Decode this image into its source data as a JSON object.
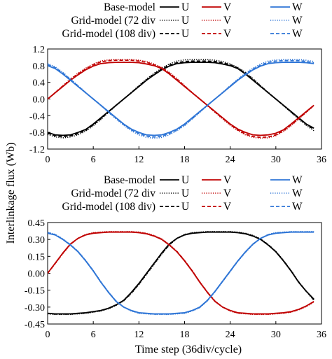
{
  "figure": {
    "ylabel": "Interlinkage flux (Wb)",
    "xlabel": "Time step (36div/cycle)"
  },
  "legend": {
    "rows": [
      {
        "label": "Base-model",
        "style": "solid"
      },
      {
        "label": "Grid-model (72 div",
        "style": "dotted"
      },
      {
        "label": "Grid-model (108 div)",
        "style": "dashed"
      }
    ],
    "phases": [
      {
        "name": "U",
        "color": "#000000"
      },
      {
        "name": "V",
        "color": "#c00000"
      },
      {
        "name": "W",
        "color": "#2e75d6"
      }
    ]
  },
  "chart_data": [
    {
      "type": "line",
      "title": "",
      "xlabel": "",
      "ylabel": "Interlinkage flux (Wb)",
      "xlim": [
        0,
        36
      ],
      "ylim": [
        -1.2,
        1.2
      ],
      "xticks": [
        "0",
        "6",
        "12",
        "18",
        "24",
        "30",
        "36"
      ],
      "yticks": [
        "1.2",
        "0.8",
        "0.4",
        "0.0",
        "-0.4",
        "-0.8",
        "-1.2"
      ],
      "grid": false,
      "legend_position": "top",
      "x": [
        0,
        1,
        2,
        3,
        4,
        5,
        6,
        7,
        8,
        9,
        10,
        11,
        12,
        13,
        14,
        15,
        16,
        17,
        18,
        19,
        20,
        21,
        22,
        23,
        24,
        25,
        26,
        27,
        28,
        29,
        30,
        31,
        32,
        33,
        34,
        35
      ],
      "series": [
        {
          "name": "U",
          "model": "Base-model",
          "color": "#000000",
          "dash": "solid",
          "values": [
            -0.8,
            -0.86,
            -0.87,
            -0.86,
            -0.8,
            -0.73,
            -0.6,
            -0.45,
            -0.3,
            -0.15,
            0.0,
            0.15,
            0.3,
            0.45,
            0.58,
            0.7,
            0.79,
            0.85,
            0.87,
            0.88,
            0.88,
            0.88,
            0.87,
            0.84,
            0.8,
            0.73,
            0.6,
            0.45,
            0.3,
            0.15,
            0.0,
            -0.15,
            -0.3,
            -0.45,
            -0.6,
            -0.7
          ]
        },
        {
          "name": "U",
          "model": "Grid-model (72 div",
          "color": "#000000",
          "dash": "dotted",
          "values": [
            -0.85,
            -0.91,
            -0.93,
            -0.91,
            -0.86,
            -0.77,
            -0.64,
            -0.49,
            -0.32,
            -0.16,
            0.0,
            0.16,
            0.32,
            0.48,
            0.62,
            0.74,
            0.84,
            0.91,
            0.94,
            0.95,
            0.95,
            0.95,
            0.93,
            0.9,
            0.84,
            0.76,
            0.64,
            0.49,
            0.32,
            0.16,
            0.0,
            -0.16,
            -0.32,
            -0.48,
            -0.63,
            -0.76
          ]
        },
        {
          "name": "U",
          "model": "Grid-model (108 div)",
          "color": "#000000",
          "dash": "dashed",
          "values": [
            -0.82,
            -0.88,
            -0.9,
            -0.88,
            -0.83,
            -0.75,
            -0.62,
            -0.47,
            -0.31,
            -0.15,
            0.0,
            0.15,
            0.31,
            0.46,
            0.6,
            0.72,
            0.81,
            0.87,
            0.9,
            0.91,
            0.91,
            0.91,
            0.9,
            0.87,
            0.82,
            0.74,
            0.62,
            0.47,
            0.31,
            0.15,
            0.0,
            -0.15,
            -0.31,
            -0.46,
            -0.61,
            -0.73
          ]
        },
        {
          "name": "V",
          "model": "Base-model",
          "color": "#c00000",
          "dash": "solid",
          "values": [
            0.0,
            0.15,
            0.3,
            0.45,
            0.58,
            0.7,
            0.79,
            0.85,
            0.87,
            0.88,
            0.88,
            0.88,
            0.87,
            0.84,
            0.8,
            0.73,
            0.6,
            0.45,
            0.3,
            0.15,
            0.0,
            -0.15,
            -0.3,
            -0.45,
            -0.6,
            -0.72,
            -0.8,
            -0.86,
            -0.87,
            -0.86,
            -0.82,
            -0.74,
            -0.6,
            -0.45,
            -0.3,
            -0.15
          ]
        },
        {
          "name": "V",
          "model": "Grid-model (72 div",
          "color": "#c00000",
          "dash": "dotted",
          "values": [
            0.0,
            0.16,
            0.32,
            0.48,
            0.62,
            0.74,
            0.84,
            0.91,
            0.94,
            0.95,
            0.95,
            0.95,
            0.93,
            0.9,
            0.84,
            0.76,
            0.64,
            0.49,
            0.32,
            0.16,
            0.0,
            -0.16,
            -0.32,
            -0.48,
            -0.63,
            -0.76,
            -0.86,
            -0.92,
            -0.94,
            -0.93,
            -0.88,
            -0.78,
            -0.64,
            -0.48,
            -0.32,
            -0.16
          ]
        },
        {
          "name": "V",
          "model": "Grid-model (108 div)",
          "color": "#c00000",
          "dash": "dashed",
          "values": [
            0.0,
            0.15,
            0.31,
            0.46,
            0.6,
            0.72,
            0.82,
            0.89,
            0.92,
            0.93,
            0.93,
            0.93,
            0.91,
            0.88,
            0.82,
            0.74,
            0.62,
            0.47,
            0.31,
            0.15,
            0.0,
            -0.15,
            -0.31,
            -0.46,
            -0.61,
            -0.74,
            -0.84,
            -0.9,
            -0.92,
            -0.91,
            -0.86,
            -0.76,
            -0.62,
            -0.47,
            -0.31,
            -0.15
          ]
        },
        {
          "name": "W",
          "model": "Base-model",
          "color": "#2e75d6",
          "dash": "solid",
          "values": [
            0.8,
            0.73,
            0.6,
            0.45,
            0.3,
            0.15,
            0.0,
            -0.15,
            -0.3,
            -0.45,
            -0.6,
            -0.72,
            -0.8,
            -0.86,
            -0.87,
            -0.86,
            -0.8,
            -0.72,
            -0.6,
            -0.45,
            -0.3,
            -0.15,
            0.0,
            0.15,
            0.3,
            0.45,
            0.58,
            0.7,
            0.79,
            0.85,
            0.87,
            0.88,
            0.88,
            0.88,
            0.87,
            0.85
          ]
        },
        {
          "name": "W",
          "model": "Grid-model (72 div",
          "color": "#2e75d6",
          "dash": "dotted",
          "values": [
            0.85,
            0.77,
            0.64,
            0.48,
            0.32,
            0.16,
            0.0,
            -0.16,
            -0.32,
            -0.48,
            -0.63,
            -0.76,
            -0.86,
            -0.92,
            -0.94,
            -0.92,
            -0.86,
            -0.76,
            -0.64,
            -0.48,
            -0.32,
            -0.16,
            0.0,
            0.16,
            0.32,
            0.48,
            0.62,
            0.74,
            0.84,
            0.91,
            0.94,
            0.95,
            0.95,
            0.95,
            0.93,
            0.9
          ]
        },
        {
          "name": "W",
          "model": "Grid-model (108 div)",
          "color": "#2e75d6",
          "dash": "dashed",
          "values": [
            0.83,
            0.75,
            0.62,
            0.47,
            0.31,
            0.15,
            0.0,
            -0.15,
            -0.31,
            -0.46,
            -0.61,
            -0.74,
            -0.83,
            -0.89,
            -0.91,
            -0.89,
            -0.83,
            -0.74,
            -0.62,
            -0.47,
            -0.31,
            -0.15,
            0.0,
            0.15,
            0.31,
            0.46,
            0.6,
            0.72,
            0.81,
            0.88,
            0.91,
            0.92,
            0.92,
            0.92,
            0.9,
            0.87
          ]
        }
      ]
    },
    {
      "type": "line",
      "title": "",
      "xlabel": "Time step (36div/cycle)",
      "ylabel": "Interlinkage flux (Wb)",
      "xlim": [
        0,
        36
      ],
      "ylim": [
        -0.45,
        0.45
      ],
      "xticks": [
        "0",
        "6",
        "12",
        "18",
        "24",
        "30",
        "36"
      ],
      "yticks": [
        "0.45",
        "0.30",
        "0.15",
        "0.00",
        "-0.15",
        "-0.30",
        "-0.45"
      ],
      "grid": false,
      "legend_position": "top",
      "x": [
        0,
        1,
        2,
        3,
        4,
        5,
        6,
        7,
        8,
        9,
        10,
        11,
        12,
        13,
        14,
        15,
        16,
        17,
        18,
        19,
        20,
        21,
        22,
        23,
        24,
        25,
        26,
        27,
        28,
        29,
        30,
        31,
        32,
        33,
        34,
        35
      ],
      "series": [
        {
          "name": "U",
          "model": "Base-model",
          "color": "#000000",
          "dash": "solid",
          "values": [
            -0.355,
            -0.36,
            -0.36,
            -0.36,
            -0.355,
            -0.35,
            -0.34,
            -0.33,
            -0.31,
            -0.28,
            -0.24,
            -0.17,
            -0.09,
            0.0,
            0.09,
            0.18,
            0.26,
            0.31,
            0.34,
            0.355,
            0.36,
            0.365,
            0.365,
            0.365,
            0.365,
            0.36,
            0.35,
            0.33,
            0.3,
            0.25,
            0.19,
            0.11,
            0.02,
            -0.08,
            -0.16,
            -0.23
          ]
        },
        {
          "name": "U",
          "model": "Grid-model (72 div",
          "color": "#000000",
          "dash": "dotted",
          "values": [
            -0.36,
            -0.365,
            -0.365,
            -0.365,
            -0.36,
            -0.355,
            -0.345,
            -0.335,
            -0.315,
            -0.285,
            -0.245,
            -0.18,
            -0.1,
            -0.01,
            0.08,
            0.17,
            0.25,
            0.31,
            0.345,
            0.36,
            0.365,
            0.37,
            0.37,
            0.37,
            0.37,
            0.365,
            0.355,
            0.335,
            0.305,
            0.255,
            0.195,
            0.115,
            0.025,
            -0.075,
            -0.16,
            -0.24
          ]
        },
        {
          "name": "U",
          "model": "Grid-model (108 div)",
          "color": "#000000",
          "dash": "dashed",
          "values": [
            -0.357,
            -0.362,
            -0.362,
            -0.362,
            -0.357,
            -0.352,
            -0.342,
            -0.332,
            -0.312,
            -0.282,
            -0.242,
            -0.175,
            -0.095,
            -0.005,
            0.085,
            0.175,
            0.255,
            0.31,
            0.342,
            0.357,
            0.362,
            0.367,
            0.367,
            0.367,
            0.367,
            0.362,
            0.352,
            0.332,
            0.302,
            0.252,
            0.192,
            0.112,
            0.022,
            -0.078,
            -0.16,
            -0.235
          ]
        },
        {
          "name": "V",
          "model": "Base-model",
          "color": "#c00000",
          "dash": "solid",
          "values": [
            0.0,
            0.09,
            0.18,
            0.26,
            0.31,
            0.34,
            0.355,
            0.36,
            0.365,
            0.365,
            0.365,
            0.365,
            0.36,
            0.35,
            0.33,
            0.3,
            0.25,
            0.19,
            0.11,
            0.02,
            -0.08,
            -0.17,
            -0.25,
            -0.3,
            -0.33,
            -0.35,
            -0.355,
            -0.36,
            -0.36,
            -0.36,
            -0.355,
            -0.35,
            -0.34,
            -0.32,
            -0.29,
            -0.25
          ]
        },
        {
          "name": "V",
          "model": "Grid-model (72 div",
          "color": "#c00000",
          "dash": "dotted",
          "values": [
            0.0,
            0.085,
            0.175,
            0.255,
            0.31,
            0.345,
            0.36,
            0.365,
            0.37,
            0.37,
            0.37,
            0.37,
            0.365,
            0.355,
            0.335,
            0.305,
            0.255,
            0.195,
            0.115,
            0.025,
            -0.075,
            -0.165,
            -0.245,
            -0.3,
            -0.335,
            -0.355,
            -0.36,
            -0.365,
            -0.365,
            -0.365,
            -0.36,
            -0.355,
            -0.345,
            -0.325,
            -0.295,
            -0.255
          ]
        },
        {
          "name": "V",
          "model": "Grid-model (108 div)",
          "color": "#c00000",
          "dash": "dashed",
          "values": [
            0.0,
            0.088,
            0.178,
            0.258,
            0.31,
            0.342,
            0.357,
            0.362,
            0.367,
            0.367,
            0.367,
            0.367,
            0.362,
            0.352,
            0.332,
            0.302,
            0.252,
            0.192,
            0.112,
            0.022,
            -0.078,
            -0.168,
            -0.248,
            -0.3,
            -0.332,
            -0.352,
            -0.357,
            -0.362,
            -0.362,
            -0.362,
            -0.357,
            -0.352,
            -0.342,
            -0.322,
            -0.292,
            -0.252
          ]
        },
        {
          "name": "W",
          "model": "Base-model",
          "color": "#2e75d6",
          "dash": "solid",
          "values": [
            0.355,
            0.34,
            0.3,
            0.25,
            0.19,
            0.11,
            0.02,
            -0.08,
            -0.17,
            -0.25,
            -0.3,
            -0.33,
            -0.35,
            -0.355,
            -0.36,
            -0.36,
            -0.36,
            -0.355,
            -0.35,
            -0.33,
            -0.3,
            -0.24,
            -0.16,
            -0.07,
            0.02,
            0.11,
            0.19,
            0.26,
            0.31,
            0.34,
            0.355,
            0.36,
            0.365,
            0.365,
            0.365,
            0.365
          ]
        },
        {
          "name": "W",
          "model": "Grid-model (72 div",
          "color": "#2e75d6",
          "dash": "dotted",
          "values": [
            0.365,
            0.345,
            0.305,
            0.255,
            0.195,
            0.115,
            0.025,
            -0.075,
            -0.165,
            -0.245,
            -0.3,
            -0.335,
            -0.355,
            -0.36,
            -0.365,
            -0.365,
            -0.365,
            -0.36,
            -0.355,
            -0.335,
            -0.305,
            -0.245,
            -0.165,
            -0.075,
            0.015,
            0.105,
            0.185,
            0.255,
            0.31,
            0.345,
            0.36,
            0.365,
            0.37,
            0.37,
            0.37,
            0.37
          ]
        },
        {
          "name": "W",
          "model": "Grid-model (108 div)",
          "color": "#2e75d6",
          "dash": "dashed",
          "values": [
            0.36,
            0.342,
            0.302,
            0.252,
            0.192,
            0.112,
            0.022,
            -0.078,
            -0.168,
            -0.248,
            -0.3,
            -0.332,
            -0.352,
            -0.357,
            -0.362,
            -0.362,
            -0.362,
            -0.357,
            -0.352,
            -0.332,
            -0.302,
            -0.242,
            -0.162,
            -0.072,
            0.018,
            0.108,
            0.188,
            0.258,
            0.31,
            0.342,
            0.357,
            0.362,
            0.367,
            0.367,
            0.367,
            0.367
          ]
        }
      ]
    }
  ]
}
